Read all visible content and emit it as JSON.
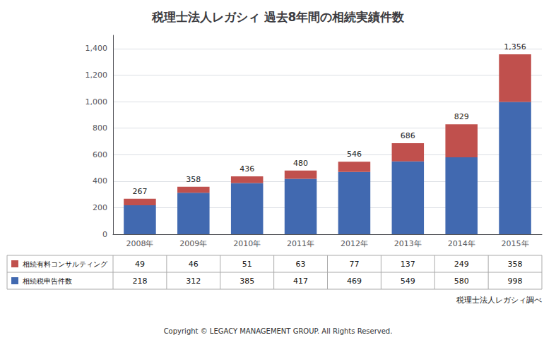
{
  "chart_data": {
    "type": "bar",
    "title": "税理士法人レガシィ 過去8年間の相続実績件数",
    "categories": [
      "2008年",
      "2009年",
      "2010年",
      "2011年",
      "2012年",
      "2013年",
      "2014年",
      "2015年"
    ],
    "series": [
      {
        "name": "相続税申告件数",
        "color": "#4169B0",
        "values": [
          218,
          312,
          385,
          417,
          469,
          549,
          580,
          998
        ]
      },
      {
        "name": "相続有料コンサルティング",
        "color": "#C0504D",
        "values": [
          49,
          46,
          51,
          63,
          77,
          137,
          249,
          358
        ]
      }
    ],
    "stacked": true,
    "totals": [
      267,
      358,
      436,
      480,
      546,
      686,
      829,
      1356
    ],
    "total_labels": [
      "267",
      "358",
      "436",
      "480",
      "546",
      "686",
      "829",
      "1,356"
    ],
    "ylim": [
      0,
      1500
    ],
    "yticks": [
      0,
      200,
      400,
      600,
      800,
      1000,
      1200,
      1400
    ],
    "grid": true,
    "annotations": [
      "税理士法人レガシィ調べ",
      "Copyright © LEGACY MANAGEMENT GROUP. All Rights Reserved."
    ]
  }
}
